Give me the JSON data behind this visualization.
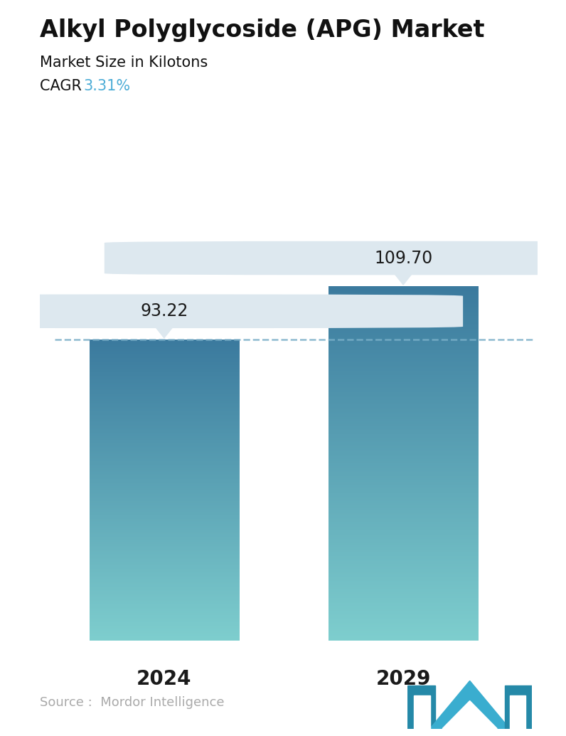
{
  "title": "Alkyl Polyglycoside (APG) Market",
  "subtitle": "Market Size in Kilotons",
  "cagr_label": "CAGR",
  "cagr_value": "3.31%",
  "cagr_color": "#4BACD6",
  "categories": [
    "2024",
    "2029"
  ],
  "values": [
    93.22,
    109.7
  ],
  "bar_top_color": "#3B7A9E",
  "bar_bottom_color": "#7ECECE",
  "dashed_line_color": "#7AAFC8",
  "dashed_line_y": 93.22,
  "label_box_color": "#DDE8EF",
  "source_text": "Source :  Mordor Intelligence",
  "source_color": "#AAAAAA",
  "background_color": "#FFFFFF",
  "title_fontsize": 24,
  "subtitle_fontsize": 15,
  "cagr_fontsize": 15,
  "tick_fontsize": 20,
  "annotation_fontsize": 17,
  "source_fontsize": 13,
  "logo_color1": "#3AADCF",
  "logo_color2": "#2589A8"
}
